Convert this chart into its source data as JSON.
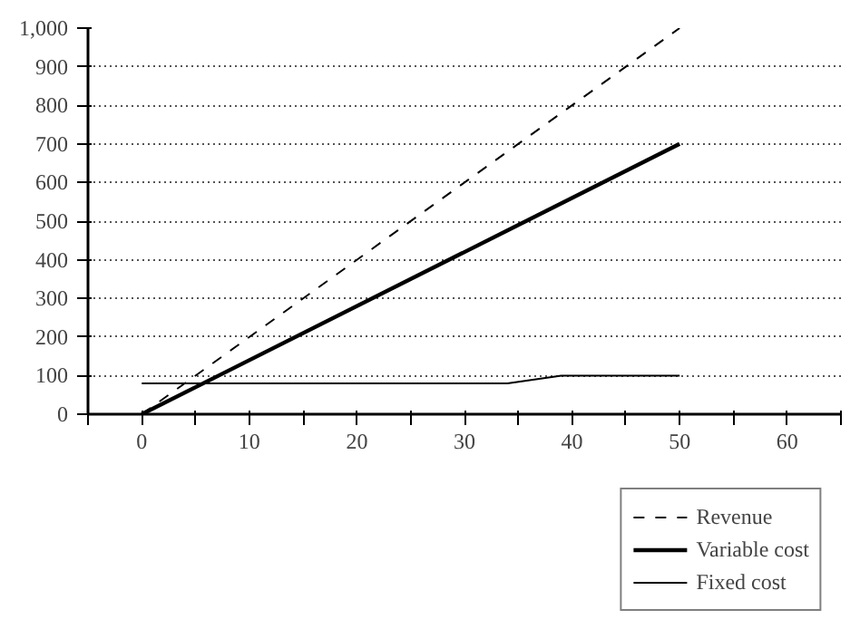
{
  "chart_data": {
    "type": "line",
    "xlim": [
      -5,
      65
    ],
    "ylim": [
      0,
      1000
    ],
    "xticks": [
      {
        "value": -5,
        "label": null
      },
      0,
      {
        "value": 5,
        "label": null
      },
      10,
      {
        "value": 15,
        "label": null
      },
      20,
      {
        "value": 25,
        "label": null
      },
      30,
      {
        "value": 35,
        "label": null
      },
      40,
      {
        "value": 45,
        "label": null
      },
      50,
      {
        "value": 55,
        "label": null
      },
      60,
      {
        "value": 65,
        "label": null
      }
    ],
    "yticks": [
      0,
      100,
      200,
      300,
      400,
      500,
      600,
      700,
      800,
      900,
      {
        "value": 1000,
        "label": "1,000"
      }
    ],
    "grid": "y",
    "legend": "bottom right",
    "series": [
      {
        "name": "Revenue",
        "color": "#000000",
        "line_style": "dashed",
        "x": [
          0,
          50
        ],
        "values": [
          0,
          1000
        ]
      },
      {
        "name": "Variable cost",
        "color": "#000000",
        "line_style": "solid",
        "x": [
          0,
          50
        ],
        "values": [
          0,
          700
        ]
      },
      {
        "name": "Fixed cost",
        "color": "#000000",
        "line_style": "solid",
        "x": [
          0,
          34,
          39,
          50
        ],
        "values": [
          80,
          80,
          100,
          100
        ]
      }
    ]
  }
}
